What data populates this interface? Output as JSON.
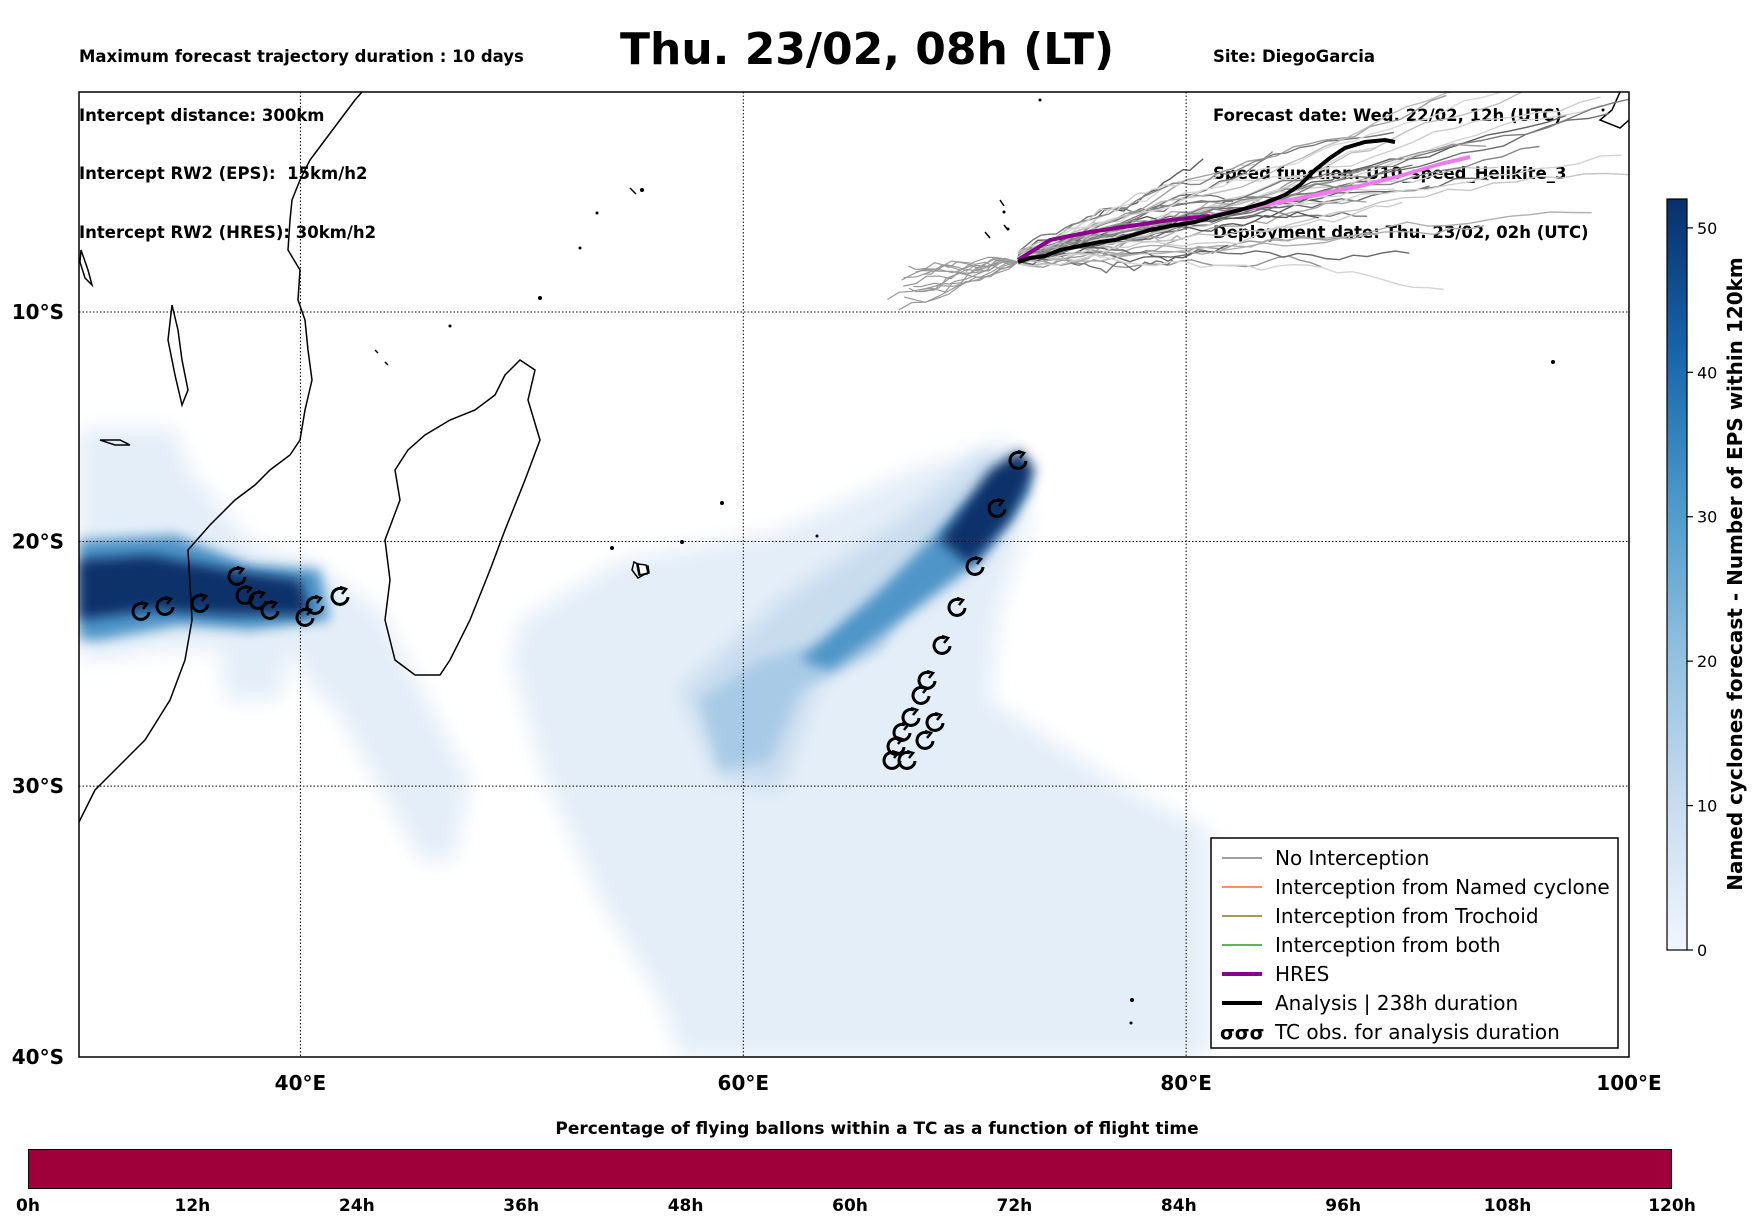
{
  "header": {
    "left_lines": [
      "Maximum forecast trajectory duration : 10 days",
      "Intercept distance: 300km",
      "Intercept RW2 (EPS):  15km/h2",
      "Intercept RW2 (HRES): 30km/h2"
    ],
    "title": "Thu. 23/02, 08h (LT)",
    "right_lines": [
      "Site: DiegoGarcia",
      "Forecast date: Wed. 22/02, 12h (UTC)",
      "Speed function: U10_speed_Helikite_3",
      "Deployment date: Thu. 23/02, 02h (UTC)"
    ]
  },
  "map": {
    "lon_labels": [
      "40°E",
      "60°E",
      "80°E",
      "100°E"
    ],
    "lat_labels": [
      "10°S",
      "20°S",
      "30°S",
      "40°S"
    ],
    "lon_values": [
      40,
      60,
      80,
      100
    ],
    "lat_values": [
      -10,
      -20,
      -30,
      -40
    ]
  },
  "colorbar": {
    "label": "Named cyclones forecast - Number of EPS within 120km",
    "ticks": [
      "0",
      "10",
      "20",
      "30",
      "40",
      "50"
    ],
    "tick_values": [
      0,
      10,
      20,
      30,
      40,
      50
    ],
    "max": 52,
    "color_low": "#e8f1fa",
    "color_high": "#08306b"
  },
  "legend": {
    "items": [
      {
        "label": "No Interception",
        "color": "#808080"
      },
      {
        "label": "Interception from Named cyclone",
        "color": "#ff6a33"
      },
      {
        "label": "Interception from Trochoid",
        "color": "#8a7a1a"
      },
      {
        "label": "Interception from both",
        "color": "#2a9a2a"
      },
      {
        "label": "HRES",
        "color": "#8b008b"
      },
      {
        "label": "Analysis | 238h duration",
        "color": "#000000"
      },
      {
        "label": "TC obs. for analysis duration",
        "color": "#000000"
      }
    ],
    "tc_symbol": "σσσ"
  },
  "percentage_bar": {
    "title": "Percentage of flying ballons within a TC as a function of flight time",
    "ticks": [
      "0h",
      "12h",
      "24h",
      "36h",
      "48h",
      "60h",
      "72h",
      "84h",
      "96h",
      "108h",
      "120h"
    ],
    "tick_hours": [
      0,
      12,
      24,
      36,
      48,
      60,
      72,
      84,
      96,
      108,
      120
    ],
    "color": "#a0003a"
  }
}
